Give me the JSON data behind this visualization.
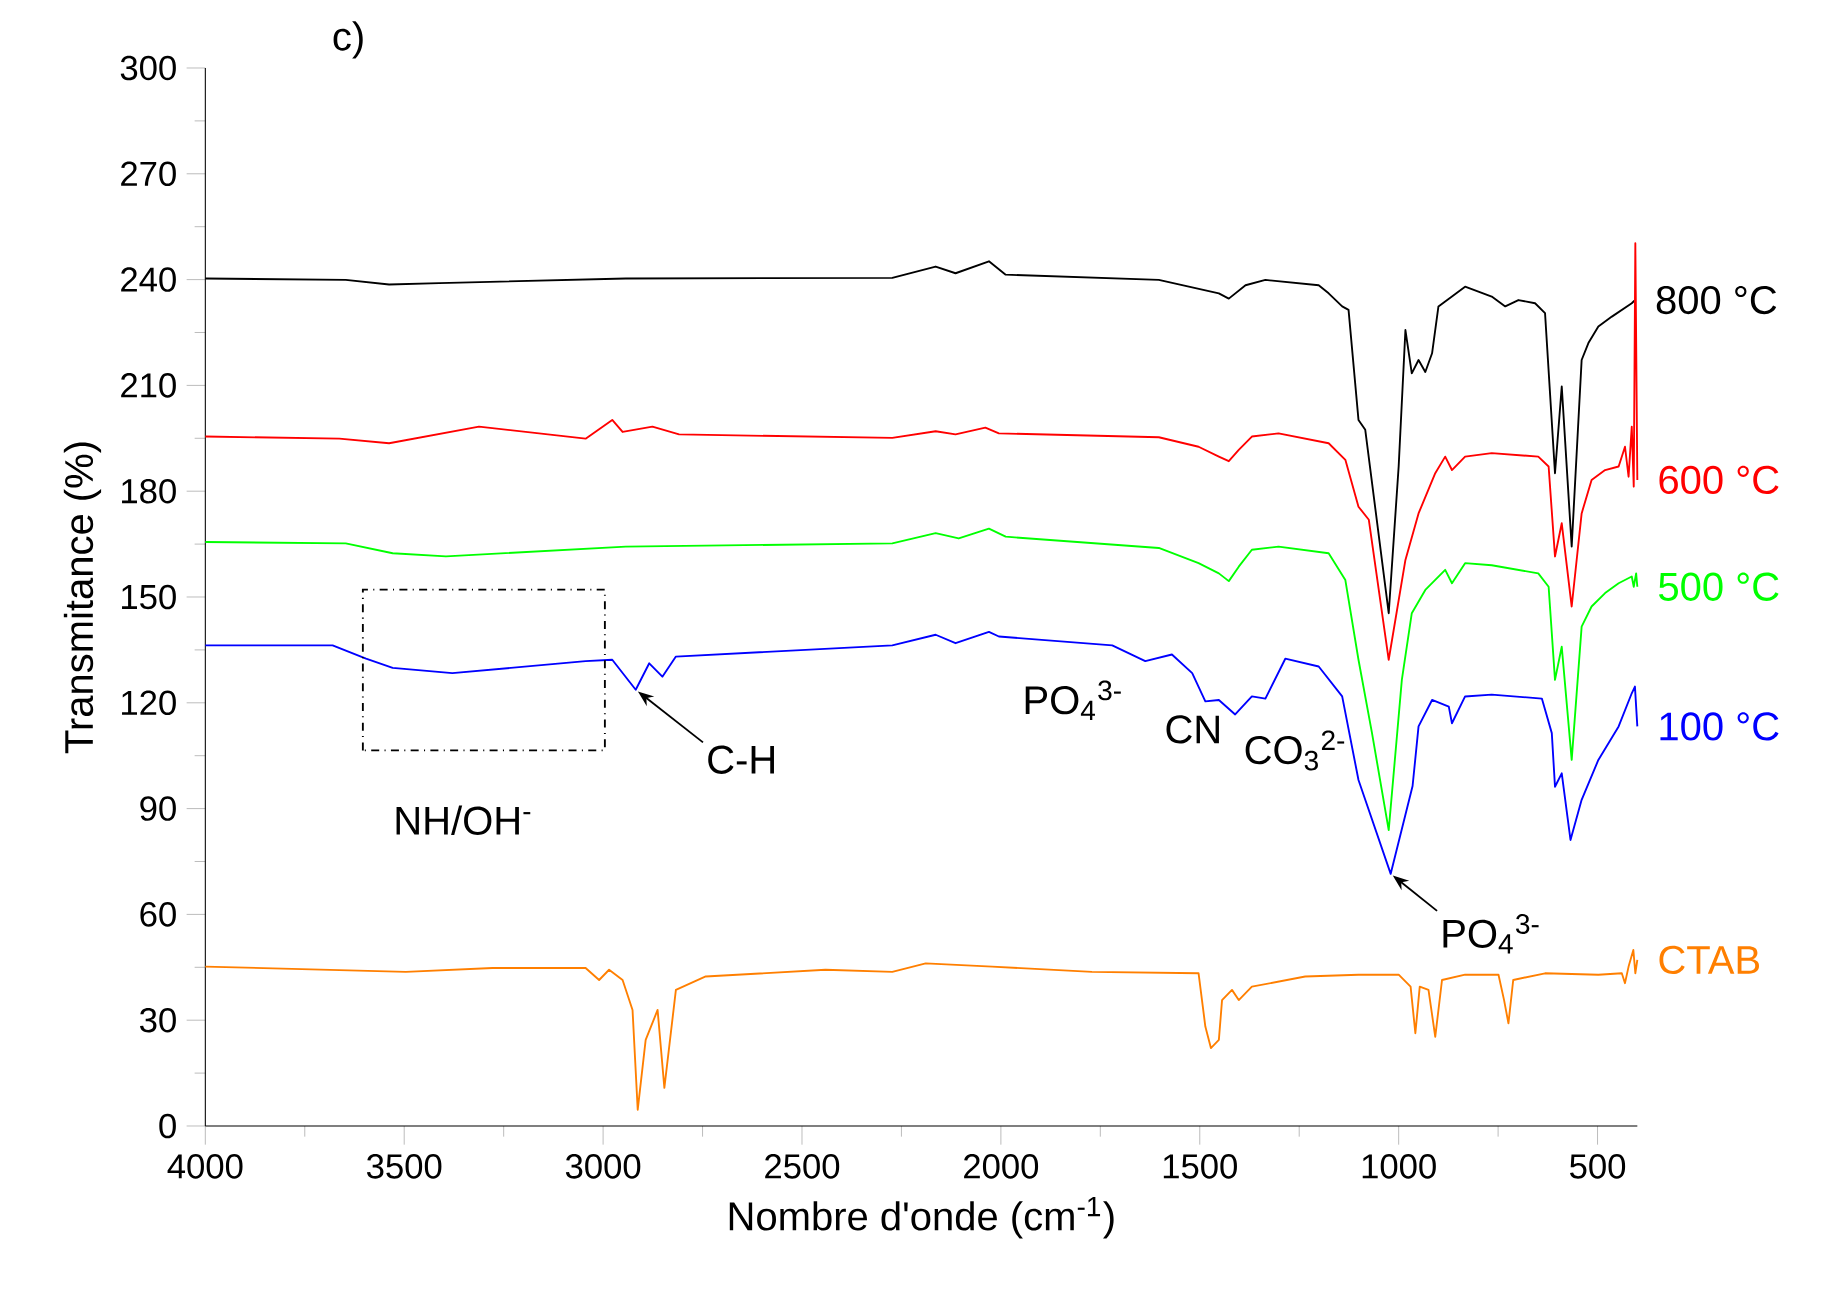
{
  "chart_data": {
    "type": "line",
    "xlabel": "Nombre d'onde (cm$^{-1}$)",
    "ylabel": "Transmitance (%)",
    "xlim": [
      4000,
      400
    ],
    "ylim": [
      0,
      300
    ],
    "xticks": [
      4000,
      3500,
      3000,
      2500,
      2000,
      1500,
      1000,
      500
    ],
    "yticks": [
      0,
      30,
      60,
      90,
      120,
      150,
      180,
      210,
      240,
      270,
      300
    ],
    "grid": false,
    "line_style": "solid",
    "annotations": [
      "c)",
      "NH/OH$^{-}$",
      {
        "text": "C-H",
        "x": 2918,
        "y": 123.7
      },
      {
        "text": "PO$_{4}$$^{3-}$",
        "x": 2030,
        "y": 140
      },
      {
        "text": "CN",
        "x": 1486,
        "y": 120.4
      },
      {
        "text": "CO$_{3}$$^{2-}$",
        "x": 1411,
        "y": 116.7
      },
      {
        "text": "PO$_{4}$$^{3-}$",
        "x": 1020,
        "y": 71.5
      }
    ],
    "series": [
      {
        "name": "800 °C",
        "color": "#000000",
        "x": [
          4000,
          3647,
          3538,
          3412,
          2943,
          2273,
          2164,
          2114,
          2030,
          1988,
          1603,
          1452,
          1427,
          1385,
          1335,
          1201,
          1176,
          1142,
          1126,
          1101,
          1084,
          1025,
          1000,
          983,
          967,
          950,
          933,
          916,
          900,
          833,
          766,
          732,
          699,
          657,
          632,
          607,
          590,
          565,
          540,
          523,
          498,
          464,
          414,
          406
        ],
        "values": [
          240.3,
          239.9,
          238.6,
          239.0,
          240.3,
          240.5,
          243.7,
          241.8,
          245.2,
          241.4,
          239.9,
          236.1,
          234.6,
          238.4,
          239.9,
          238.4,
          236.1,
          232.4,
          231.4,
          200.2,
          197.4,
          145.4,
          187.0,
          225.7,
          213.4,
          217.2,
          213.8,
          219.1,
          232.4,
          238.0,
          235.2,
          232.4,
          234.2,
          233.3,
          230.5,
          185.1,
          209.7,
          164.3,
          217.2,
          222.0,
          226.7,
          229.5,
          233.3,
          234.2
        ]
      },
      {
        "name": "600 °C",
        "color": "#ff0000",
        "x": [
          4000,
          3663,
          3538,
          3312,
          3044,
          2977,
          2951,
          2876,
          2809,
          2273,
          2164,
          2114,
          2039,
          2005,
          1603,
          1503,
          1452,
          1427,
          1402,
          1369,
          1302,
          1176,
          1134,
          1101,
          1075,
          1025,
          983,
          950,
          908,
          883,
          866,
          833,
          766,
          649,
          623,
          607,
          590,
          565,
          540,
          515,
          481,
          447,
          431,
          422,
          414,
          409,
          405,
          400
        ],
        "values": [
          195.5,
          194.9,
          193.6,
          198.3,
          194.9,
          200.2,
          196.8,
          198.3,
          196.1,
          195.1,
          197.0,
          196.1,
          198.0,
          196.4,
          195.3,
          192.6,
          189.8,
          188.5,
          191.7,
          195.5,
          196.4,
          193.6,
          188.9,
          175.6,
          171.9,
          132.2,
          160.5,
          173.7,
          185.1,
          189.8,
          186.0,
          189.8,
          190.8,
          189.8,
          187.0,
          161.5,
          170.9,
          147.3,
          173.7,
          183.2,
          186.0,
          187.0,
          192.6,
          184.1,
          198.3,
          181.3,
          250.3,
          183.2
        ]
      },
      {
        "name": "500 °C",
        "color": "#00ff00",
        "x": [
          4000,
          3647,
          3529,
          3395,
          2943,
          2273,
          2164,
          2106,
          2030,
          1988,
          1603,
          1503,
          1452,
          1427,
          1402,
          1369,
          1302,
          1176,
          1134,
          1101,
          1067,
          1025,
          992,
          967,
          933,
          883,
          866,
          833,
          766,
          649,
          623,
          607,
          590,
          565,
          540,
          515,
          481,
          447,
          414,
          409,
          403,
          400
        ],
        "values": [
          165.6,
          165.2,
          162.4,
          161.5,
          164.3,
          165.2,
          168.1,
          166.6,
          169.4,
          167.1,
          163.9,
          159.6,
          156.7,
          154.5,
          158.6,
          163.4,
          164.3,
          162.4,
          154.8,
          132.2,
          111.4,
          83.9,
          126.5,
          145.4,
          152.0,
          157.7,
          153.9,
          159.6,
          159.0,
          156.7,
          152.9,
          126.5,
          135.9,
          103.8,
          141.6,
          147.3,
          151.1,
          153.9,
          155.8,
          152.9,
          156.7,
          152.9
        ]
      },
      {
        "name": "100 °C",
        "color": "#0000ff",
        "x": [
          4000,
          3680,
          3596,
          3529,
          3379,
          3044,
          2977,
          2918,
          2884,
          2851,
          2817,
          2273,
          2164,
          2114,
          2030,
          2005,
          1720,
          1637,
          1570,
          1519,
          1486,
          1452,
          1411,
          1369,
          1335,
          1285,
          1201,
          1142,
          1101,
          1020,
          965,
          950,
          916,
          874,
          866,
          833,
          766,
          640,
          615,
          607,
          590,
          568,
          540,
          498,
          447,
          414,
          406,
          400
        ],
        "values": [
          136.3,
          136.3,
          132.5,
          129.9,
          128.4,
          131.8,
          132.2,
          123.7,
          131.2,
          127.4,
          133.1,
          136.3,
          139.3,
          136.9,
          140.1,
          138.8,
          136.3,
          131.8,
          133.7,
          128.4,
          120.4,
          120.8,
          116.7,
          121.8,
          121.2,
          132.5,
          130.3,
          121.8,
          98.1,
          71.5,
          96.4,
          113.3,
          120.8,
          118.9,
          114.2,
          121.8,
          122.3,
          121.2,
          111.4,
          96.2,
          100.0,
          81.1,
          92.5,
          103.8,
          113.3,
          122.7,
          124.6,
          113.3
        ]
      },
      {
        "name": "CTAB",
        "color": "#ff7f00",
        "x": [
          4000,
          3496,
          3278,
          3044,
          3010,
          2985,
          2951,
          2926,
          2913,
          2893,
          2863,
          2846,
          2817,
          2742,
          2441,
          2273,
          2189,
          2022,
          1771,
          1503,
          1486,
          1472,
          1452,
          1444,
          1419,
          1402,
          1369,
          1235,
          1101,
          1000,
          970,
          958,
          947,
          925,
          908,
          891,
          833,
          749,
          735,
          724,
          712,
          632,
          498,
          439,
          431,
          422,
          410,
          405,
          400
        ],
        "values": [
          45.2,
          43.7,
          44.8,
          44.8,
          41.4,
          44.3,
          41.4,
          32.9,
          4.6,
          24.4,
          32.9,
          10.8,
          38.6,
          42.4,
          44.3,
          43.7,
          46.1,
          45.2,
          43.7,
          43.3,
          28.2,
          22.1,
          24.4,
          35.7,
          38.6,
          35.7,
          39.5,
          42.4,
          42.9,
          42.9,
          39.5,
          26.3,
          39.5,
          38.6,
          25.3,
          41.4,
          42.9,
          42.9,
          35.7,
          29.1,
          41.4,
          43.3,
          42.9,
          43.3,
          40.5,
          45.2,
          49.9,
          43.3,
          47.1
        ]
      }
    ]
  }
}
